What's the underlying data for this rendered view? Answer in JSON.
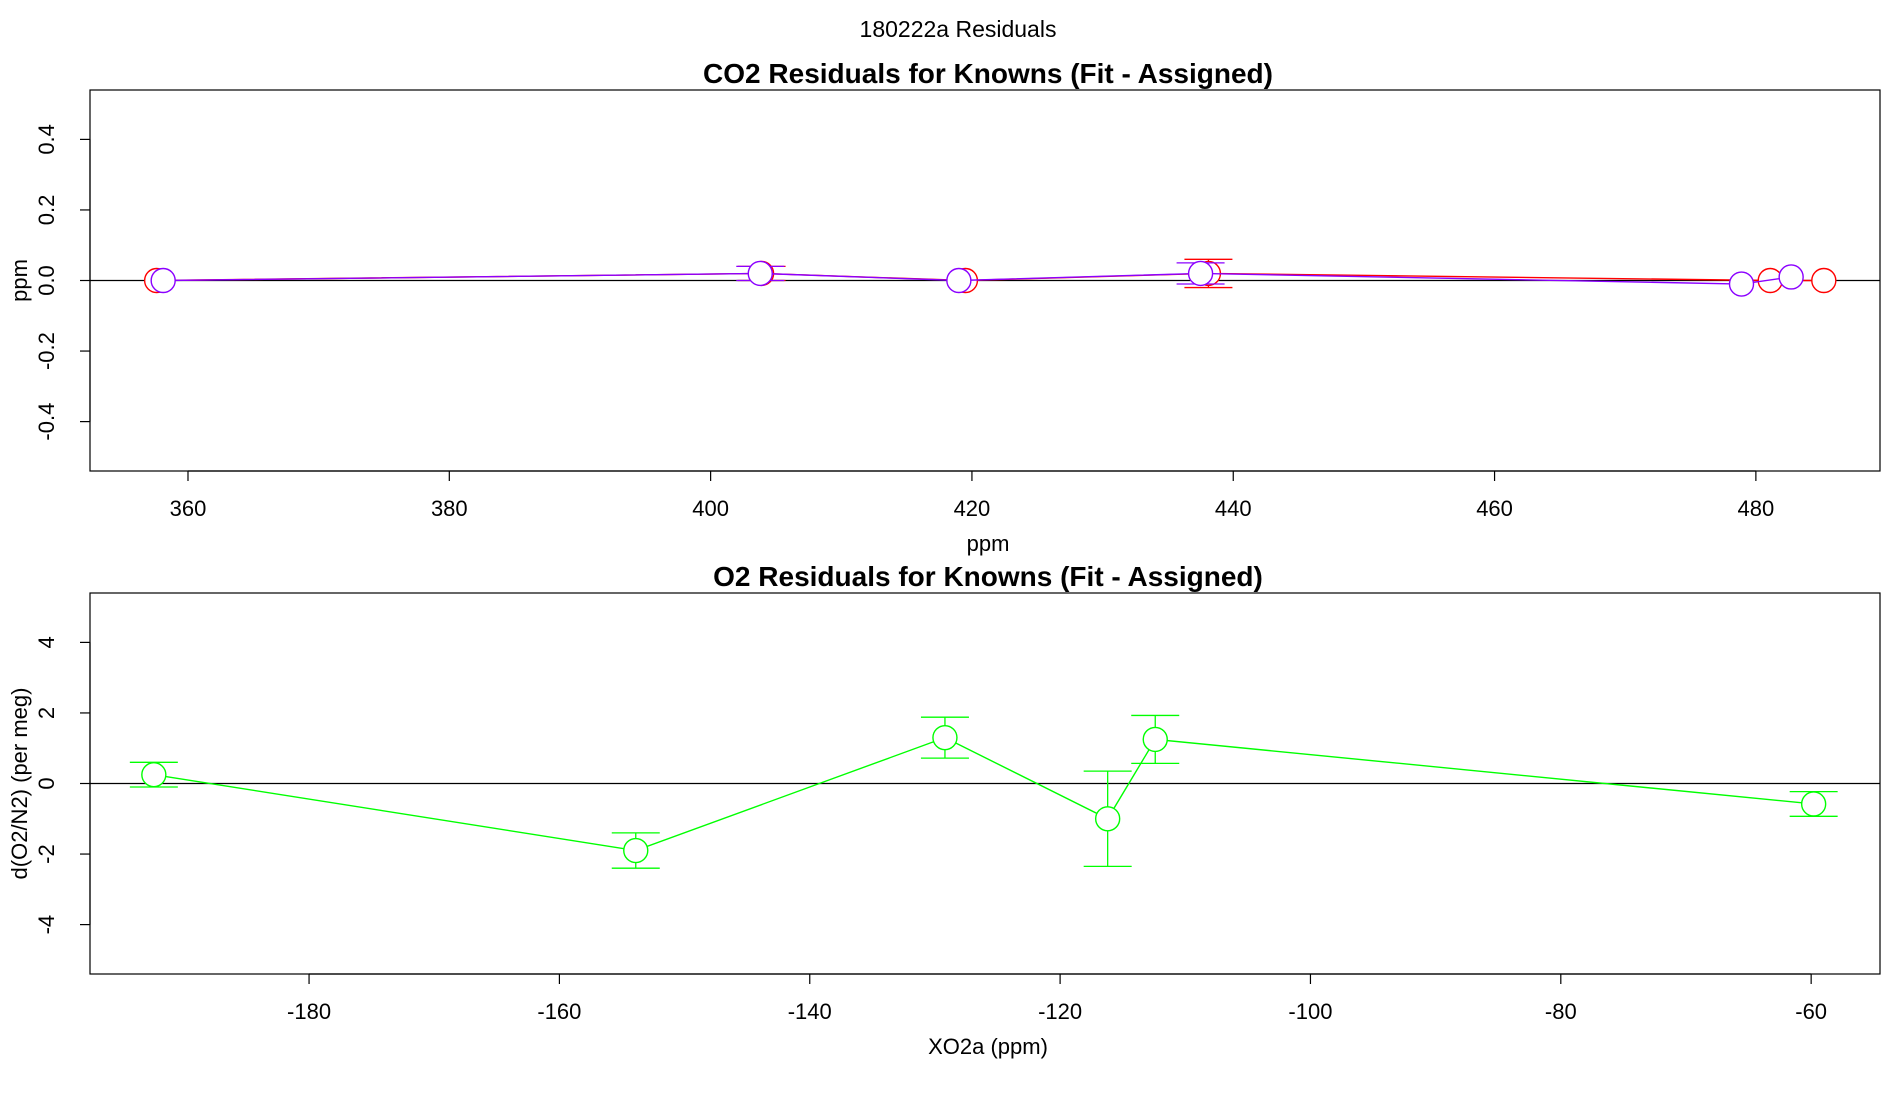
{
  "figure": {
    "title": "180222a  Residuals"
  },
  "chart_data": [
    {
      "type": "line",
      "title": "CO2 Residuals for Knowns (Fit - Assigned)",
      "xlabel": "ppm",
      "ylabel": "ppm",
      "xlim": [
        352.5,
        489.5
      ],
      "ylim": [
        -0.54,
        0.54
      ],
      "xticks": [
        360,
        380,
        400,
        420,
        440,
        460,
        480
      ],
      "yticks": [
        -0.4,
        -0.2,
        0.0,
        0.2,
        0.4
      ],
      "xtick_labels": [
        "360",
        "380",
        "400",
        "420",
        "440",
        "460",
        "480"
      ],
      "ytick_labels": [
        "-0.4",
        "-0.2",
        "0.0",
        "0.2",
        "0.4"
      ],
      "zero_line": true,
      "grid": false,
      "series": [
        {
          "color": "#ff0000",
          "x": [
            357.6,
            403.9,
            419.5,
            438.1,
            481.1,
            485.2
          ],
          "y": [
            0.0,
            0.02,
            0.0,
            0.02,
            0.0,
            0.0
          ],
          "err": [
            0.0,
            0.02,
            0.0,
            0.04,
            0.0,
            0.0
          ]
        },
        {
          "color": "#8b00ff",
          "x": [
            358.1,
            403.8,
            419.0,
            437.5,
            478.9,
            482.7
          ],
          "y": [
            0.0,
            0.02,
            0.0,
            0.02,
            -0.01,
            0.01
          ],
          "err": [
            0.0,
            0.02,
            0.0,
            0.03,
            0.0,
            0.0
          ]
        }
      ]
    },
    {
      "type": "line",
      "title": "O2 Residuals for Knowns (Fit - Assigned)",
      "xlabel": "XO2a (ppm)",
      "ylabel": "d(O2/N2) (per meg)",
      "xlim": [
        -197.5,
        -54.5
      ],
      "ylim": [
        -5.4,
        5.4
      ],
      "xticks": [
        -180,
        -160,
        -140,
        -120,
        -100,
        -80,
        -60
      ],
      "yticks": [
        -4,
        -2,
        0,
        2,
        4
      ],
      "xtick_labels": [
        "-180",
        "-160",
        "-140",
        "-120",
        "-100",
        "-80",
        "-60"
      ],
      "ytick_labels": [
        "-4",
        "-2",
        "0",
        "2",
        "4"
      ],
      "zero_line": true,
      "grid": false,
      "series": [
        {
          "color": "#00ff00",
          "x": [
            -192.4,
            -153.9,
            -129.2,
            -116.2,
            -112.4,
            -59.8
          ],
          "y": [
            0.25,
            -1.9,
            1.3,
            -1.0,
            1.25,
            -0.58
          ],
          "err": [
            0.35,
            0.5,
            0.58,
            1.35,
            0.68,
            0.35
          ]
        }
      ]
    }
  ]
}
